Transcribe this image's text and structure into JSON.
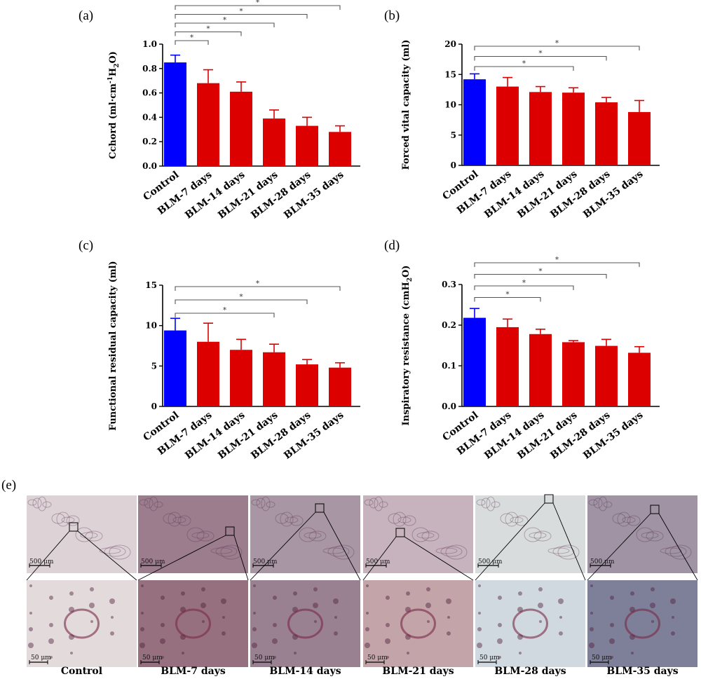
{
  "chart_data": [
    {
      "panel": "(a)",
      "type": "bar",
      "categories": [
        "Control",
        "BLM-7 days",
        "BLM-14 days",
        "BLM-21 days",
        "BLM-28 days",
        "BLM-35 days"
      ],
      "values": [
        0.85,
        0.68,
        0.61,
        0.39,
        0.33,
        0.28
      ],
      "errors": [
        0.06,
        0.11,
        0.08,
        0.07,
        0.07,
        0.05
      ],
      "colors": [
        "#0000ff",
        "#dd0000",
        "#dd0000",
        "#dd0000",
        "#dd0000",
        "#dd0000"
      ],
      "ylabel_prefix": "Cchord (ml·cm",
      "ylabel_sup": "-1",
      "ylabel_mid": "H",
      "ylabel_sub": "2",
      "ylabel_suffix": "O)",
      "ylim": [
        0,
        1.0
      ],
      "yticks": [
        "0.0",
        "0.2",
        "0.4",
        "0.6",
        "0.8",
        "1.0"
      ],
      "significance": [
        {
          "from": 0,
          "to": 1,
          "label": "*"
        },
        {
          "from": 0,
          "to": 2,
          "label": "*"
        },
        {
          "from": 0,
          "to": 3,
          "label": "*"
        },
        {
          "from": 0,
          "to": 4,
          "label": "*"
        },
        {
          "from": 0,
          "to": 5,
          "label": "*"
        }
      ]
    },
    {
      "panel": "(b)",
      "type": "bar",
      "categories": [
        "Control",
        "BLM-7 days",
        "BLM-14 days",
        "BLM-21 days",
        "BLM-28 days",
        "BLM-35 days"
      ],
      "values": [
        14.2,
        13.0,
        12.1,
        12.0,
        10.4,
        8.8
      ],
      "errors": [
        0.9,
        1.5,
        0.9,
        0.8,
        0.8,
        1.9
      ],
      "colors": [
        "#0000ff",
        "#dd0000",
        "#dd0000",
        "#dd0000",
        "#dd0000",
        "#dd0000"
      ],
      "ylabel_prefix": "Forced vital capacity (ml)",
      "ylim": [
        0,
        20
      ],
      "yticks": [
        "0",
        "5",
        "10",
        "15",
        "20"
      ],
      "significance": [
        {
          "from": 0,
          "to": 3,
          "label": "*"
        },
        {
          "from": 0,
          "to": 4,
          "label": "*"
        },
        {
          "from": 0,
          "to": 5,
          "label": "*"
        }
      ]
    },
    {
      "panel": "(c)",
      "type": "bar",
      "categories": [
        "Control",
        "BLM-7 days",
        "BLM-14 days",
        "BLM-21 days",
        "BLM-28 days",
        "BLM-35 days"
      ],
      "values": [
        9.4,
        8.0,
        7.0,
        6.7,
        5.2,
        4.8
      ],
      "errors": [
        1.5,
        2.3,
        1.3,
        1.0,
        0.6,
        0.6
      ],
      "colors": [
        "#0000ff",
        "#dd0000",
        "#dd0000",
        "#dd0000",
        "#dd0000",
        "#dd0000"
      ],
      "ylabel_prefix": "Functional residual capacity (ml)",
      "ylim": [
        0,
        15
      ],
      "yticks": [
        "0",
        "5",
        "10",
        "15"
      ],
      "significance": [
        {
          "from": 0,
          "to": 3,
          "label": "*"
        },
        {
          "from": 0,
          "to": 4,
          "label": "*"
        },
        {
          "from": 0,
          "to": 5,
          "label": "*"
        }
      ]
    },
    {
      "panel": "(d)",
      "type": "bar",
      "categories": [
        "Control",
        "BLM-7 days",
        "BLM-14 days",
        "BLM-21 days",
        "BLM-28 days",
        "BLM-35 days"
      ],
      "values": [
        0.218,
        0.195,
        0.178,
        0.158,
        0.149,
        0.132
      ],
      "errors": [
        0.023,
        0.02,
        0.012,
        0.004,
        0.016,
        0.015
      ],
      "colors": [
        "#0000ff",
        "#dd0000",
        "#dd0000",
        "#dd0000",
        "#dd0000",
        "#dd0000"
      ],
      "ylabel_prefix": "Inspiratory resistance (cmH",
      "ylabel_sub": "2",
      "ylabel_suffix": "O)",
      "ylim": [
        0,
        0.3
      ],
      "yticks": [
        "0.0",
        "0.1",
        "0.2",
        "0.3"
      ],
      "significance": [
        {
          "from": 0,
          "to": 2,
          "label": "*"
        },
        {
          "from": 0,
          "to": 3,
          "label": "*"
        },
        {
          "from": 0,
          "to": 4,
          "label": "*"
        },
        {
          "from": 0,
          "to": 5,
          "label": "*"
        }
      ]
    }
  ],
  "histology": {
    "panel": "(e)",
    "labels": [
      "Control",
      "BLM-7 days",
      "BLM-14 days",
      "BLM-21 days",
      "BLM-28 days",
      "BLM-35 days"
    ],
    "scale_top": "500 μm",
    "scale_bottom": "50 μm",
    "top_colors": [
      "#ddd3d6",
      "#9c7d8e",
      "#a896a4",
      "#c7b3bd",
      "#d9dcdc",
      "#9f93a4"
    ],
    "bottom_colors": [
      "#e3dadc",
      "#96707f",
      "#9a8192",
      "#c3a4a9",
      "#d0d9e0",
      "#7e7f98"
    ]
  }
}
